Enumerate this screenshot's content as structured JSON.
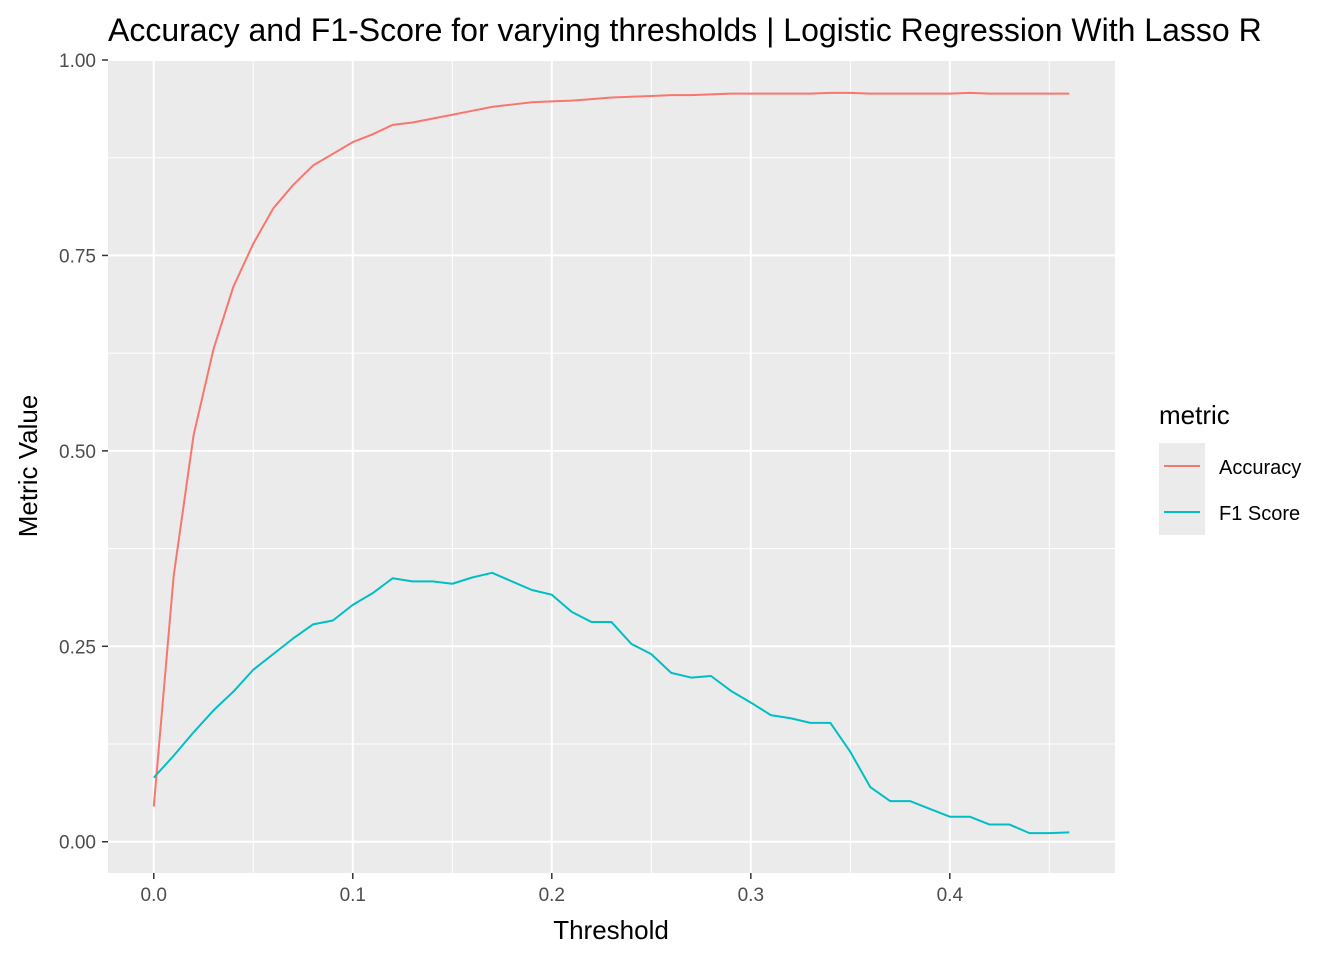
{
  "chart_data": {
    "type": "line",
    "title": "Accuracy and F1-Score for varying thresholds | Logistic Regression With Lasso R",
    "xlabel": "Threshold",
    "ylabel": "Metric Value",
    "xlim": [
      -0.023,
      0.483
    ],
    "ylim": [
      -0.04,
      1.0
    ],
    "x_ticks": [
      0.0,
      0.1,
      0.2,
      0.3,
      0.4
    ],
    "x_tick_labels": [
      "0.0",
      "0.1",
      "0.2",
      "0.3",
      "0.4"
    ],
    "x_minor_ticks": [
      0.05,
      0.15,
      0.25,
      0.35,
      0.45
    ],
    "y_ticks": [
      0.0,
      0.25,
      0.5,
      0.75,
      1.0
    ],
    "y_tick_labels": [
      "0.00",
      "0.25",
      "0.50",
      "0.75",
      "1.00"
    ],
    "y_minor_ticks": [
      0.125,
      0.375,
      0.625,
      0.875
    ],
    "grid": true,
    "legend": {
      "title": "metric",
      "position": "right"
    },
    "x": [
      0.0,
      0.01,
      0.02,
      0.03,
      0.04,
      0.05,
      0.06,
      0.07,
      0.08,
      0.09,
      0.1,
      0.11,
      0.12,
      0.13,
      0.14,
      0.15,
      0.16,
      0.17,
      0.18,
      0.19,
      0.2,
      0.21,
      0.22,
      0.23,
      0.24,
      0.25,
      0.26,
      0.27,
      0.28,
      0.29,
      0.3,
      0.31,
      0.32,
      0.33,
      0.34,
      0.35,
      0.36,
      0.37,
      0.38,
      0.39,
      0.4,
      0.41,
      0.42,
      0.43,
      0.44,
      0.45,
      0.46
    ],
    "series": [
      {
        "name": "Accuracy",
        "color": "#F8766D",
        "values": [
          0.045,
          0.34,
          0.52,
          0.63,
          0.71,
          0.765,
          0.81,
          0.84,
          0.865,
          0.88,
          0.895,
          0.905,
          0.917,
          0.92,
          0.925,
          0.93,
          0.935,
          0.94,
          0.943,
          0.946,
          0.947,
          0.948,
          0.95,
          0.952,
          0.953,
          0.954,
          0.955,
          0.955,
          0.956,
          0.957,
          0.957,
          0.957,
          0.957,
          0.957,
          0.958,
          0.958,
          0.957,
          0.957,
          0.957,
          0.957,
          0.957,
          0.958,
          0.957,
          0.957,
          0.957,
          0.957,
          0.957
        ]
      },
      {
        "name": "F1 Score",
        "color": "#00BFC4",
        "values": [
          0.082,
          0.11,
          0.14,
          0.168,
          0.192,
          0.22,
          0.24,
          0.26,
          0.278,
          0.283,
          0.303,
          0.318,
          0.337,
          0.333,
          0.333,
          0.33,
          0.338,
          0.344,
          0.333,
          0.322,
          0.316,
          0.294,
          0.281,
          0.281,
          0.253,
          0.24,
          0.216,
          0.21,
          0.212,
          0.193,
          0.178,
          0.162,
          0.158,
          0.152,
          0.152,
          0.115,
          0.07,
          0.052,
          0.052,
          0.042,
          0.032,
          0.032,
          0.022,
          0.022,
          0.011,
          0.011,
          0.012
        ]
      }
    ]
  }
}
